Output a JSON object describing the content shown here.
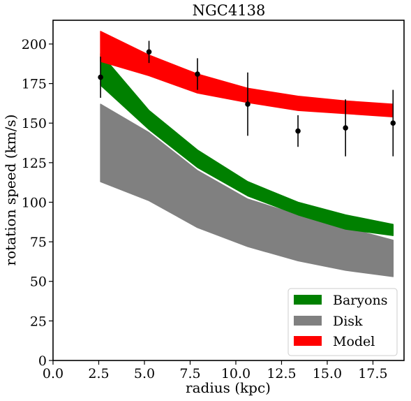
{
  "chart_data": {
    "type": "area",
    "title": "NGC4138",
    "xlabel": "radius (kpc)",
    "ylabel": "rotation speed (km/s)",
    "xlim": [
      0,
      19.2
    ],
    "ylim": [
      0,
      215
    ],
    "xticks": [
      "0.0",
      "2.5",
      "5.0",
      "7.5",
      "10.0",
      "12.5",
      "15.0",
      "17.5"
    ],
    "xtick_values": [
      0,
      2.5,
      5,
      7.5,
      10,
      12.5,
      15,
      17.5
    ],
    "yticks": [
      "0",
      "25",
      "50",
      "75",
      "100",
      "125",
      "150",
      "175",
      "200"
    ],
    "ytick_values": [
      0,
      25,
      50,
      75,
      100,
      125,
      150,
      175,
      200
    ],
    "grid": false,
    "legend_position": "bottom-right",
    "bands": [
      {
        "name": "Disk",
        "color": "#808080",
        "x": [
          2.6,
          5.25,
          7.9,
          10.65,
          13.4,
          16.0,
          18.6
        ],
        "lower": [
          113,
          101,
          84,
          72,
          63,
          57,
          53
        ],
        "upper": [
          162,
          144,
          120,
          102,
          92,
          84,
          76
        ]
      },
      {
        "name": "Baryons",
        "color": "#008000",
        "x": [
          2.6,
          5.25,
          7.9,
          10.65,
          13.4,
          16.0,
          18.6
        ],
        "lower": [
          174,
          146,
          122,
          104,
          92,
          83,
          79
        ],
        "upper": [
          194,
          158,
          133,
          113,
          100,
          92,
          86
        ]
      },
      {
        "name": "Model",
        "color": "#ff0000",
        "x": [
          2.6,
          5.25,
          7.9,
          10.65,
          13.4,
          16.0,
          18.6
        ],
        "lower": [
          189,
          180,
          169,
          163,
          158,
          156,
          154
        ],
        "upper": [
          208,
          193,
          181,
          172,
          167,
          164,
          162
        ]
      }
    ],
    "observations": {
      "color": "#000000",
      "x": [
        2.6,
        5.25,
        7.9,
        10.65,
        13.4,
        16.0,
        18.6
      ],
      "y": [
        179,
        195,
        181,
        162,
        145,
        147,
        150
      ],
      "yerr": [
        13,
        7,
        10,
        20,
        10,
        18,
        21
      ]
    },
    "legend": [
      {
        "label": "Baryons",
        "color": "#008000"
      },
      {
        "label": "Disk",
        "color": "#808080"
      },
      {
        "label": "Model",
        "color": "#ff0000"
      }
    ]
  }
}
